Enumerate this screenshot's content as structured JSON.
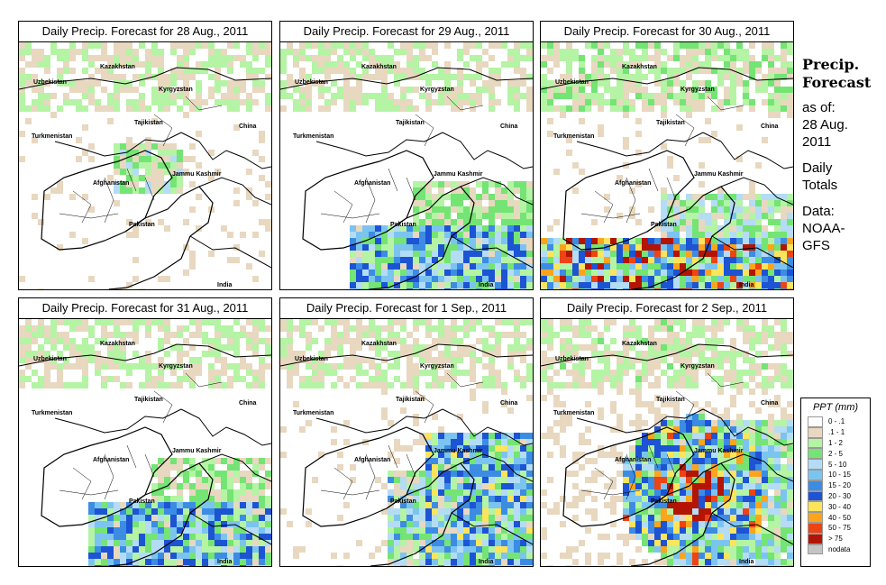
{
  "panels": [
    {
      "title": "Daily Precip. Forecast for  28 Aug., 2011",
      "intensity": "light"
    },
    {
      "title": "Daily Precip. Forecast for  29 Aug., 2011",
      "intensity": "south"
    },
    {
      "title": "Daily Precip. Forecast for  30 Aug., 2011",
      "intensity": "south_heavy"
    },
    {
      "title": "Daily Precip. Forecast for  31 Aug., 2011",
      "intensity": "south"
    },
    {
      "title": "Daily Precip. Forecast for  1 Sep., 2011",
      "intensity": "east"
    },
    {
      "title": "Daily Precip. Forecast for  2 Sep., 2011",
      "intensity": "east_heavy"
    }
  ],
  "map_labels": {
    "kazakhstan": "Kazakhstan",
    "uzbekistan": "Uzbekistan",
    "kyrgyzstan": "Kyrgyzstan",
    "tajikistan": "Tajikistan",
    "china": "China",
    "turkmenistan": "Turkmenistan",
    "jammu_kashmir": "Jammu Kashmir",
    "afghanistan": "Afghanistan",
    "pakistan": "Pakistan",
    "india": "India"
  },
  "side": {
    "heading_line1": "Precip.",
    "heading_line2": "Forecast",
    "asof_line1": "as of:",
    "asof_line2": "28 Aug.",
    "asof_line3": "2011",
    "totals_line1": "Daily",
    "totals_line2": "Totals",
    "data_line1": "Data:",
    "data_line2": "NOAA-",
    "data_line3": "GFS"
  },
  "legend": {
    "title": "PPT (mm)",
    "items": [
      {
        "label": "0 - .1",
        "color": "#ffffff"
      },
      {
        "label": ".1 - 1",
        "color": "#e8d8c0"
      },
      {
        "label": "1 - 2",
        "color": "#b4f4a4"
      },
      {
        "label": "2 - 5",
        "color": "#74e474"
      },
      {
        "label": "5 - 10",
        "color": "#b4dcf4"
      },
      {
        "label": "10 - 15",
        "color": "#7cc4f0"
      },
      {
        "label": "15 - 20",
        "color": "#3c8ce4"
      },
      {
        "label": "20 - 30",
        "color": "#1c54d4"
      },
      {
        "label": "30 - 40",
        "color": "#fce45c"
      },
      {
        "label": "40 - 50",
        "color": "#fca41c"
      },
      {
        "label": "50 - 75",
        "color": "#ec4414"
      },
      {
        "label": "> 75",
        "color": "#b41404"
      },
      {
        "label": "nodata",
        "color": "#c4c4c4"
      }
    ]
  }
}
